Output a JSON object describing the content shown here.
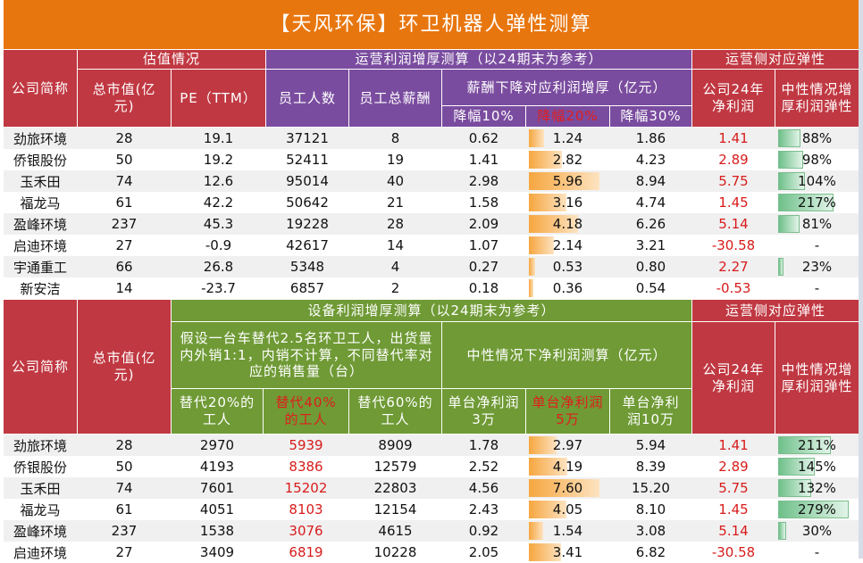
{
  "title": "【天风环保】环卫机器人弹性测算",
  "table1": {
    "group_valuation": "估值情况",
    "group_ops": "运营利润增厚测算（以24期末为参考）",
    "group_elastic": "运营侧对应弹性",
    "h_company": "公司简称",
    "h_mcap": "总市值(亿元)",
    "h_pe": "PE（TTM）",
    "h_staff": "员工人数",
    "h_salary": "员工总薪酬",
    "h_salary_cut": "薪酬下降对应利润增厚（亿元）",
    "h_cut10": "降幅10%",
    "h_cut20": "降幅20%",
    "h_cut30": "降幅30%",
    "h_profit24": "公司24年净利润",
    "h_elastic": "中性情况增厚利润弹性",
    "rows": [
      {
        "name": "劲旅环境",
        "mcap": "28",
        "pe": "19.1",
        "staff": "37121",
        "salary": "8",
        "c10": "0.62",
        "c20": "1.24",
        "c30": "1.86",
        "profit": "1.41",
        "elastic": "88%",
        "c20_fill": 0.21,
        "el_fill": 0.32
      },
      {
        "name": "侨银股份",
        "mcap": "50",
        "pe": "19.2",
        "staff": "52411",
        "salary": "19",
        "c10": "1.41",
        "c20": "2.82",
        "c30": "4.23",
        "profit": "2.89",
        "elastic": "98%",
        "c20_fill": 0.47,
        "el_fill": 0.36
      },
      {
        "name": "玉禾田",
        "mcap": "74",
        "pe": "12.6",
        "staff": "95014",
        "salary": "40",
        "c10": "2.98",
        "c20": "5.96",
        "c30": "8.94",
        "profit": "5.75",
        "elastic": "104%",
        "c20_fill": 1.0,
        "el_fill": 0.38
      },
      {
        "name": "福龙马",
        "mcap": "61",
        "pe": "42.2",
        "staff": "50642",
        "salary": "21",
        "c10": "1.58",
        "c20": "3.16",
        "c30": "4.74",
        "profit": "1.45",
        "elastic": "217%",
        "c20_fill": 0.53,
        "el_fill": 0.79
      },
      {
        "name": "盈峰环境",
        "mcap": "237",
        "pe": "45.3",
        "staff": "19228",
        "salary": "28",
        "c10": "2.09",
        "c20": "4.18",
        "c30": "6.26",
        "profit": "5.14",
        "elastic": "81%",
        "c20_fill": 0.7,
        "el_fill": 0.3
      },
      {
        "name": "启迪环境",
        "mcap": "27",
        "pe": "-0.9",
        "staff": "42617",
        "salary": "14",
        "c10": "1.07",
        "c20": "2.14",
        "c30": "3.21",
        "profit": "-30.58",
        "elastic": "-",
        "c20_fill": 0.36,
        "el_fill": 0
      },
      {
        "name": "宇通重工",
        "mcap": "66",
        "pe": "26.8",
        "staff": "5348",
        "salary": "4",
        "c10": "0.27",
        "c20": "0.53",
        "c30": "0.80",
        "profit": "2.27",
        "elastic": "23%",
        "c20_fill": 0.09,
        "el_fill": 0.08
      },
      {
        "name": "新安洁",
        "mcap": "14",
        "pe": "-23.7",
        "staff": "6857",
        "salary": "2",
        "c10": "0.18",
        "c20": "0.36",
        "c30": "0.54",
        "profit": "-0.53",
        "elastic": "-",
        "c20_fill": 0.06,
        "el_fill": 0
      }
    ]
  },
  "table2": {
    "group_equip": "设备利润增厚测算（以24期末为参考）",
    "group_elastic": "运营侧对应弹性",
    "h_company": "公司简称",
    "h_mcap": "总市值(亿元)",
    "h_assume": "假设一台车替代2.5名环卫工人，出货量内外销1:1，内销不计算，不同替代率对应的销售量（台）",
    "h_neutral": "中性情况下净利润测算（亿元）",
    "h_r20": "替代20%的工人",
    "h_r40": "替代40%的工人",
    "h_r60": "替代60%的工人",
    "h_p3": "单台净利润3万",
    "h_p5": "单台净利润5万",
    "h_p10": "单台净利润10万",
    "h_profit24": "公司24年净利润",
    "h_elastic": "中性情况增厚利润弹性",
    "rows": [
      {
        "name": "劲旅环境",
        "mcap": "28",
        "r20": "2970",
        "r40": "5939",
        "r60": "8909",
        "p3": "1.78",
        "p5": "2.97",
        "p10": "5.94",
        "profit": "1.41",
        "elastic": "211%",
        "p5_fill": 0.39,
        "el_fill": 0.75
      },
      {
        "name": "侨银股份",
        "mcap": "50",
        "r20": "4193",
        "r40": "8386",
        "r60": "12579",
        "p3": "2.52",
        "p5": "4.19",
        "p10": "8.39",
        "profit": "2.89",
        "elastic": "145%",
        "p5_fill": 0.55,
        "el_fill": 0.52
      },
      {
        "name": "玉禾田",
        "mcap": "74",
        "r20": "7601",
        "r40": "15202",
        "r60": "22803",
        "p3": "4.56",
        "p5": "7.60",
        "p10": "15.20",
        "profit": "5.75",
        "elastic": "132%",
        "p5_fill": 1.0,
        "el_fill": 0.47
      },
      {
        "name": "福龙马",
        "mcap": "61",
        "r20": "4051",
        "r40": "8103",
        "r60": "12154",
        "p3": "2.43",
        "p5": "4.05",
        "p10": "8.10",
        "profit": "1.45",
        "elastic": "279%",
        "p5_fill": 0.53,
        "el_fill": 1.0
      },
      {
        "name": "盈峰环境",
        "mcap": "237",
        "r20": "1538",
        "r40": "3076",
        "r60": "4615",
        "p3": "0.92",
        "p5": "1.54",
        "p10": "3.08",
        "profit": "5.14",
        "elastic": "30%",
        "p5_fill": 0.2,
        "el_fill": 0.11
      },
      {
        "name": "启迪环境",
        "mcap": "27",
        "r20": "3409",
        "r40": "6819",
        "r60": "10228",
        "p3": "2.05",
        "p5": "3.41",
        "p10": "6.82",
        "profit": "-30.58",
        "elastic": "-",
        "p5_fill": 0.45,
        "el_fill": 0
      }
    ]
  }
}
